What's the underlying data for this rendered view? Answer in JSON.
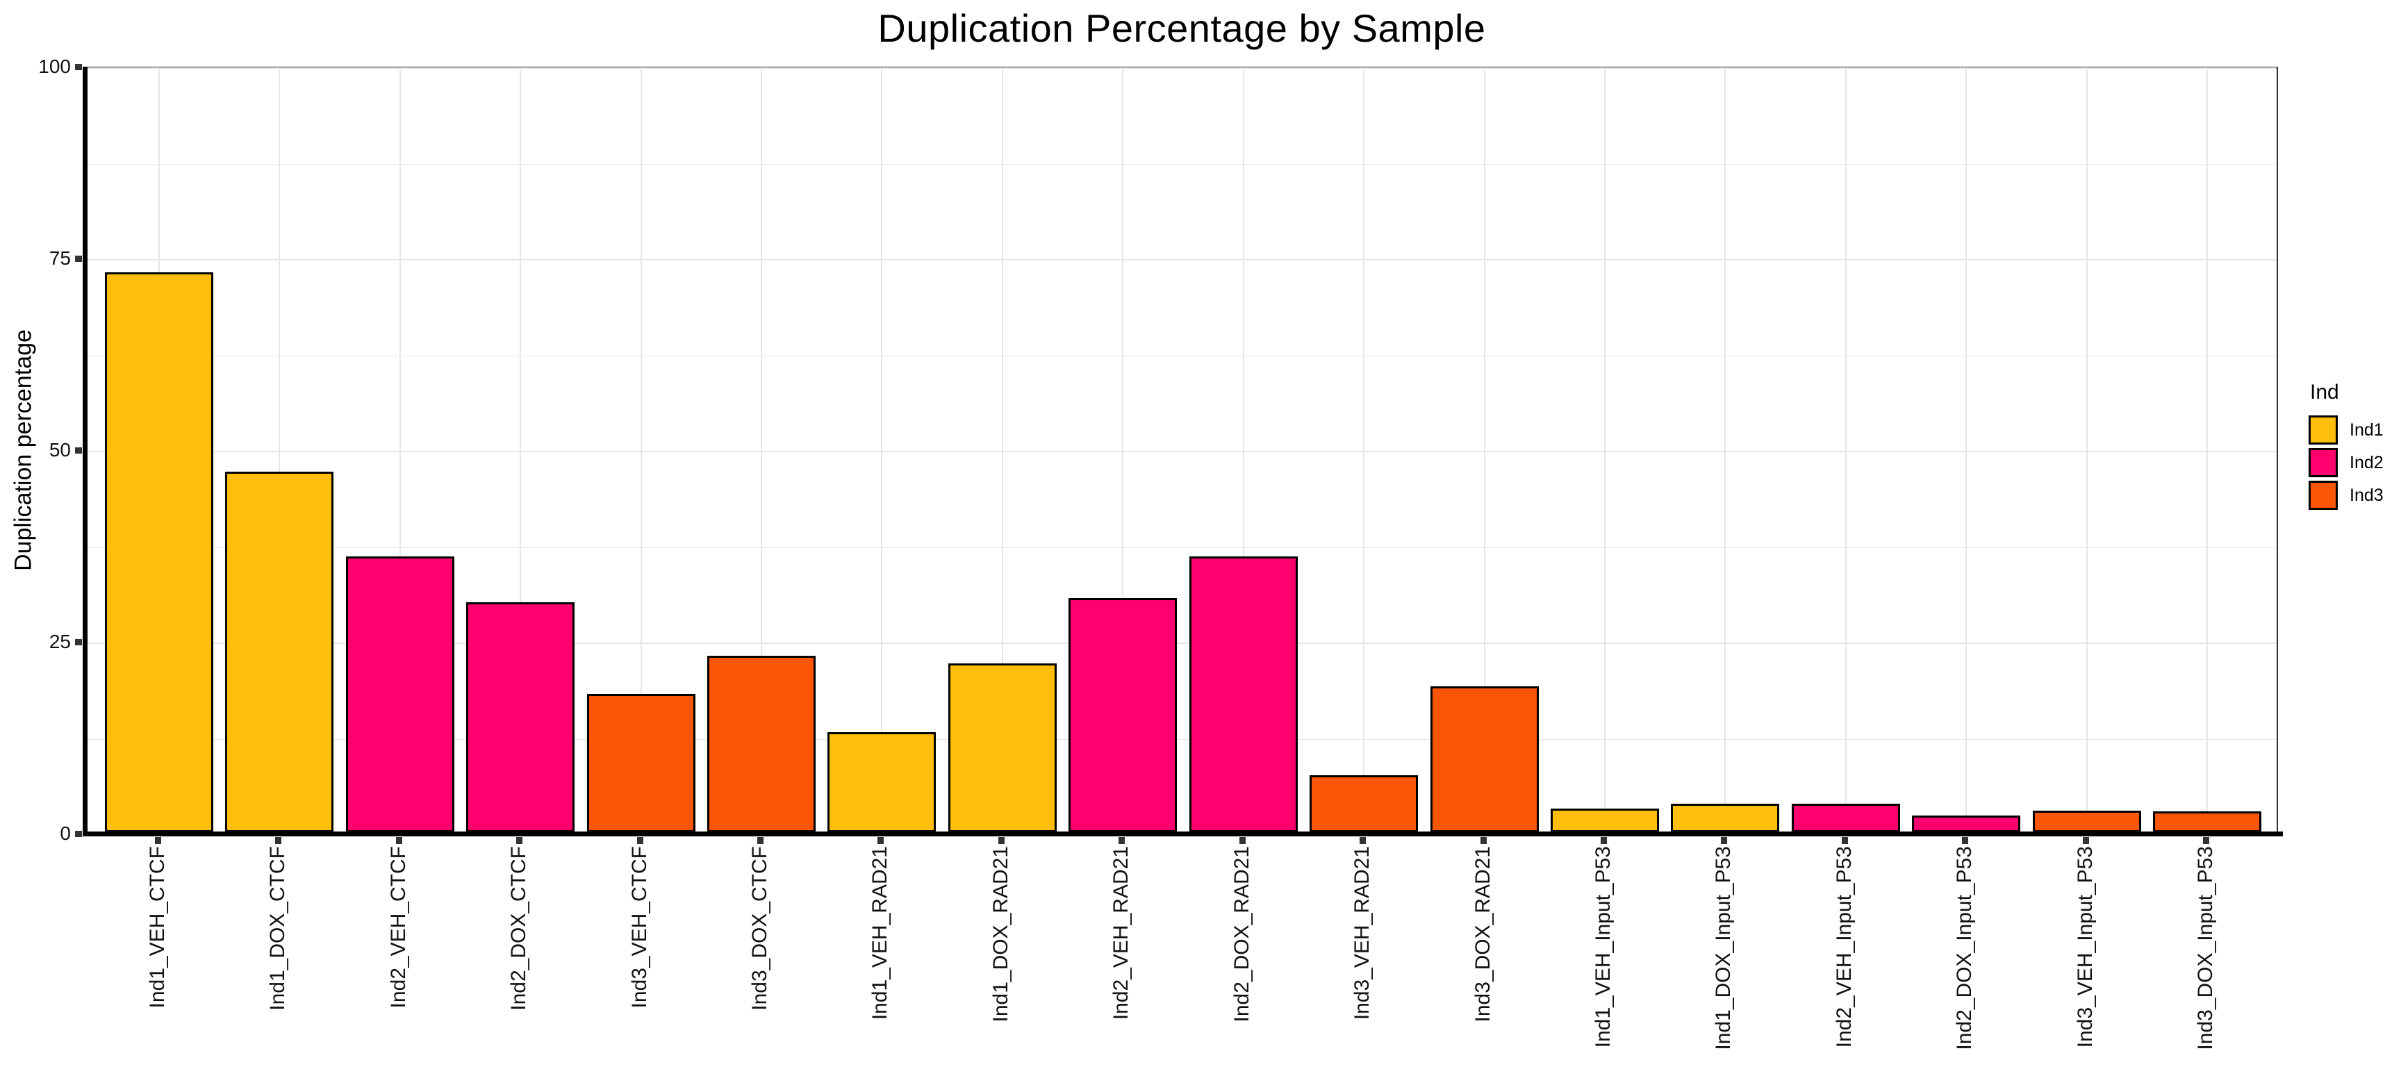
{
  "title": "Duplication Percentage by Sample",
  "colors": {
    "background": "#FFFFFF",
    "grid": "#E6E6E6",
    "axis_line": "#000000",
    "tick_mark": "#333333",
    "panel_border": "#333333",
    "bar_border": "#000000",
    "text": "#000000"
  },
  "chart_data": {
    "type": "bar",
    "title": "Duplication Percentage by Sample",
    "xlabel": "",
    "ylabel": "Duplication percentage",
    "ylim": [
      0,
      100
    ],
    "yticks": [
      0,
      25,
      50,
      75,
      100
    ],
    "ytick_labels": [
      "0",
      "25",
      "50",
      "75",
      "100"
    ],
    "yminor": [
      12.5,
      37.5,
      62.5,
      87.5
    ],
    "grid": "horizontal major+minor light gray; vertical major at each category",
    "legend_position": "right",
    "categories": [
      "Ind1_VEH_CTCF",
      "Ind1_DOX_CTCF",
      "Ind2_VEH_CTCF",
      "Ind2_DOX_CTCF",
      "Ind3_VEH_CTCF",
      "Ind3_DOX_CTCF",
      "Ind1_VEH_RAD21",
      "Ind1_DOX_RAD21",
      "Ind2_VEH_RAD21",
      "Ind2_DOX_RAD21",
      "Ind3_VEH_RAD21",
      "Ind3_DOX_RAD21",
      "Ind1_VEH_Input_P53",
      "Ind1_DOX_Input_P53",
      "Ind2_VEH_Input_P53",
      "Ind2_DOX_Input_P53",
      "Ind3_VEH_Input_P53",
      "Ind3_DOX_Input_P53"
    ],
    "values": [
      73,
      47,
      36,
      30,
      18,
      23,
      13,
      22,
      30.5,
      36,
      7.4,
      19,
      3.1,
      3.7,
      3.7,
      2.2,
      2.8,
      2.7
    ],
    "groups": [
      "Ind1",
      "Ind1",
      "Ind2",
      "Ind2",
      "Ind3",
      "Ind3",
      "Ind1",
      "Ind1",
      "Ind2",
      "Ind2",
      "Ind3",
      "Ind3",
      "Ind1",
      "Ind1",
      "Ind2",
      "Ind2",
      "Ind3",
      "Ind3"
    ],
    "group_colors": {
      "Ind1": "#FFBE0B",
      "Ind2": "#FF006E",
      "Ind3": "#FB5607"
    },
    "legend": {
      "title": "Ind",
      "items": [
        {
          "label": "Ind1",
          "color": "#FFBE0B"
        },
        {
          "label": "Ind2",
          "color": "#FF006E"
        },
        {
          "label": "Ind3",
          "color": "#FB5607"
        }
      ]
    }
  }
}
